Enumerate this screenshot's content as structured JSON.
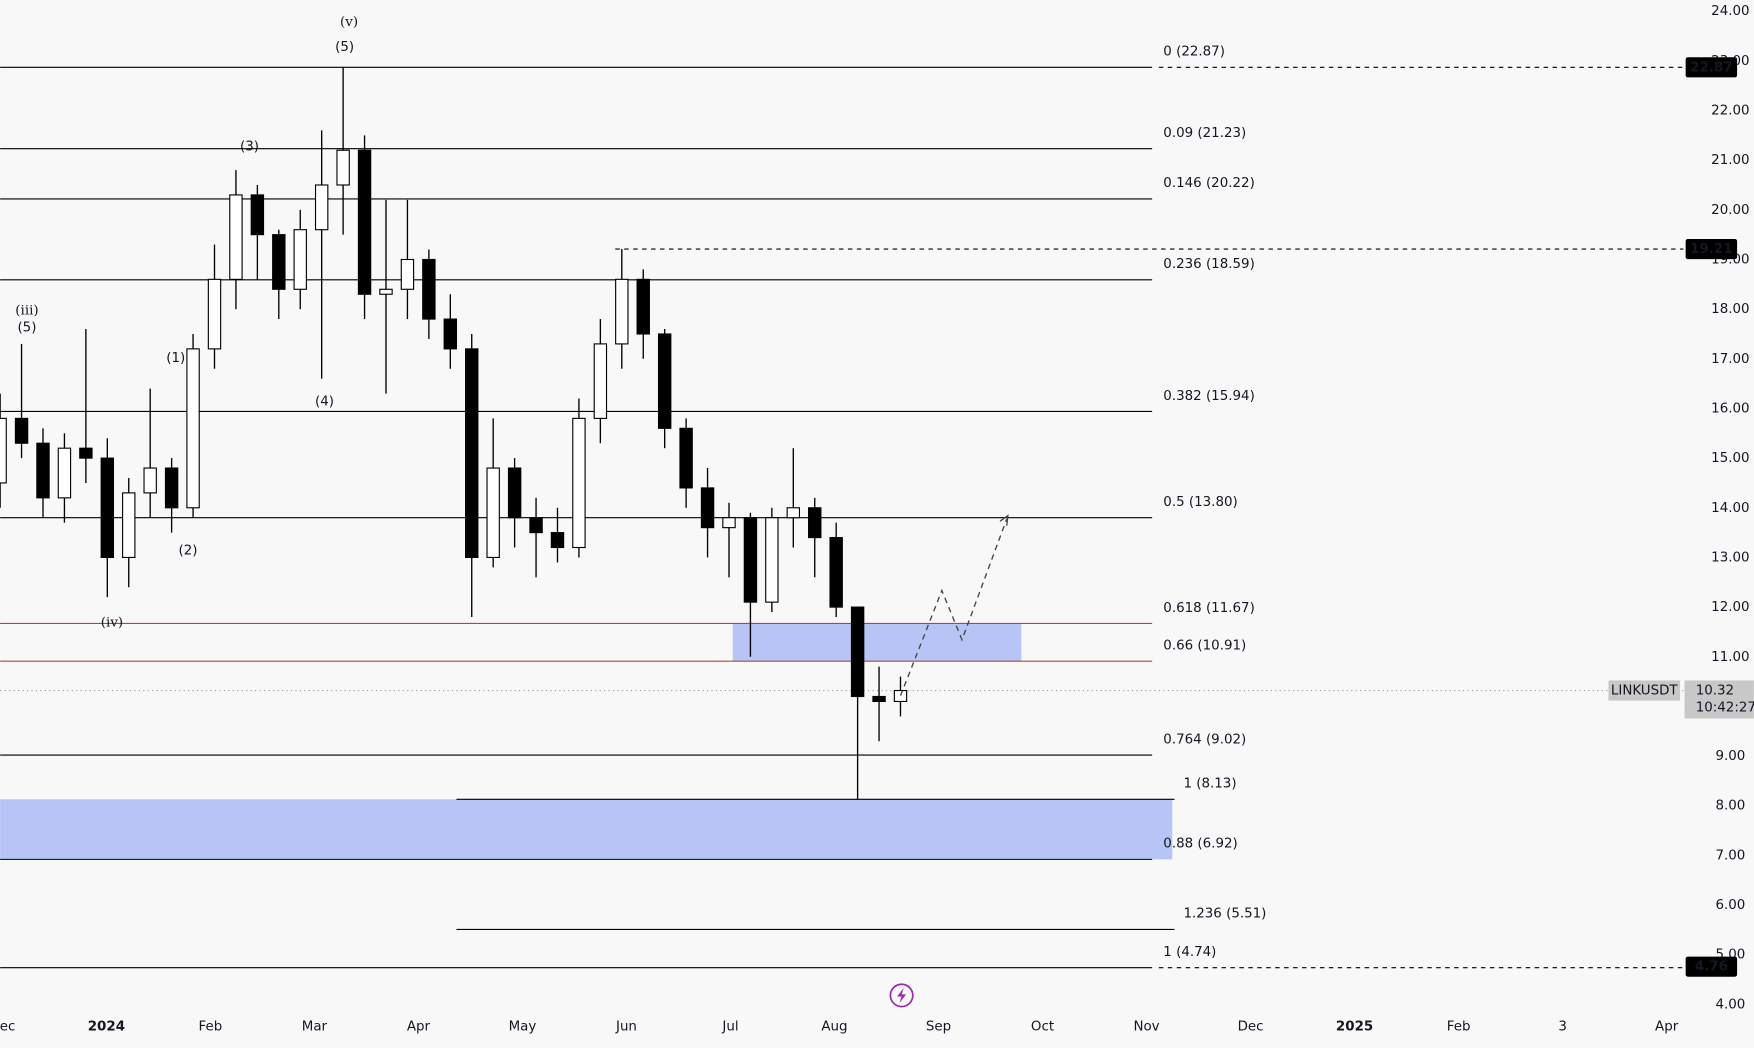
{
  "chart_data": {
    "type": "candlestick",
    "symbol": "LINKUSDT",
    "countdown": "10:42:27",
    "open": [
      14.5,
      15.8,
      15.3,
      14.2,
      15.2,
      15.0,
      13.0,
      14.3,
      14.8,
      14.0,
      17.2,
      18.6,
      20.3,
      19.5,
      18.4,
      19.6,
      20.5,
      21.2,
      18.3,
      18.4,
      19.0,
      17.8,
      17.2,
      13.0,
      14.8,
      13.8,
      13.5,
      13.2,
      15.8,
      17.3,
      18.6,
      17.5,
      15.6,
      14.4,
      13.6,
      13.8,
      12.1,
      13.8,
      14.0,
      13.4,
      12.0,
      10.2,
      10.1
    ],
    "high": [
      16.3,
      17.3,
      15.6,
      15.5,
      17.6,
      15.4,
      14.6,
      16.4,
      15.0,
      17.5,
      19.3,
      20.8,
      20.5,
      19.6,
      20.0,
      21.6,
      22.87,
      21.5,
      20.2,
      20.2,
      19.2,
      18.3,
      17.5,
      15.8,
      15.0,
      14.2,
      14.0,
      16.2,
      17.8,
      19.21,
      18.8,
      17.6,
      15.8,
      14.8,
      14.1,
      13.9,
      14.0,
      15.2,
      14.2,
      13.7,
      12.0,
      10.8,
      10.6
    ],
    "low": [
      14.0,
      15.0,
      13.8,
      13.7,
      14.5,
      12.2,
      12.4,
      13.8,
      13.5,
      13.8,
      16.8,
      18.0,
      18.6,
      17.8,
      18.0,
      16.6,
      19.5,
      17.8,
      16.3,
      17.8,
      17.4,
      16.8,
      11.8,
      12.8,
      13.2,
      12.6,
      12.9,
      13.0,
      15.3,
      16.8,
      17.0,
      15.2,
      14.0,
      13.0,
      12.6,
      11.0,
      11.9,
      13.2,
      12.6,
      11.8,
      8.13,
      9.3,
      9.8
    ],
    "close": [
      15.8,
      15.3,
      14.2,
      15.2,
      15.0,
      13.0,
      14.3,
      14.8,
      14.0,
      17.2,
      18.6,
      20.3,
      19.5,
      18.4,
      19.6,
      20.5,
      21.2,
      18.3,
      18.4,
      19.0,
      17.8,
      17.2,
      13.0,
      14.8,
      13.8,
      13.5,
      13.2,
      15.8,
      17.3,
      18.6,
      17.5,
      15.6,
      14.4,
      13.6,
      13.8,
      12.1,
      13.8,
      14.0,
      13.4,
      12.0,
      10.2,
      10.1,
      10.32
    ],
    "ylim": [
      4,
      24
    ],
    "yticks": [
      {
        "value": 4,
        "label": "4.00"
      },
      {
        "value": 5,
        "label": "5.00"
      },
      {
        "value": 6,
        "label": "6.00"
      },
      {
        "value": 7,
        "label": "7.00"
      },
      {
        "value": 8,
        "label": "8.00"
      },
      {
        "value": 9,
        "label": "9.00"
      },
      {
        "value": 10,
        "label": "10.00"
      },
      {
        "value": 11,
        "label": "11.00"
      },
      {
        "value": 12,
        "label": "12.00"
      },
      {
        "value": 13,
        "label": "13.00"
      },
      {
        "value": 14,
        "label": "14.00"
      },
      {
        "value": 15,
        "label": "15.00"
      },
      {
        "value": 16,
        "label": "16.00"
      },
      {
        "value": 17,
        "label": "17.00"
      },
      {
        "value": 18,
        "label": "18.00"
      },
      {
        "value": 19,
        "label": "19.00"
      },
      {
        "value": 20,
        "label": "20.00"
      },
      {
        "value": 21,
        "label": "21.00"
      },
      {
        "value": 22,
        "label": "22.00"
      },
      {
        "value": 23,
        "label": "23.00"
      },
      {
        "value": 24,
        "label": "24.00"
      }
    ],
    "x_labels": [
      "Dec",
      "2024",
      "Feb",
      "Mar",
      "Apr",
      "May",
      "Jun",
      "Jul",
      "Aug",
      "Sep",
      "Oct",
      "Nov",
      "Dec",
      "2025",
      "Feb",
      "3",
      "Apr"
    ],
    "levels": [
      {
        "name": "0 (22.87)",
        "value": 22.87,
        "color": "#000000"
      },
      {
        "name": "0.09 (21.23)",
        "value": 21.23,
        "color": "#000000"
      },
      {
        "name": "0.146 (20.22)",
        "value": 20.22,
        "color": "#000000"
      },
      {
        "name": "0.236 (18.59)",
        "value": 18.59,
        "color": "#000000"
      },
      {
        "name": "0.382 (15.94)",
        "value": 15.94,
        "color": "#000000"
      },
      {
        "name": "0.5 (13.80)",
        "value": 13.8,
        "color": "#000000"
      },
      {
        "name": "0.618 (11.67)",
        "value": 11.67,
        "color": "#b5443b"
      },
      {
        "name": "0.66 (10.91)",
        "value": 10.91,
        "color": "#b5443b"
      },
      {
        "name": "0.764 (9.02)",
        "value": 9.02,
        "color": "#000000"
      },
      {
        "name": "1 (8.13)",
        "value": 8.13,
        "color": "#000000"
      },
      {
        "name": "0.88 (6.92)",
        "value": 6.92,
        "color": "#000000"
      },
      {
        "name": "1.236 (5.51)",
        "value": 5.51,
        "color": "#000000"
      },
      {
        "name": "1 (4.74)",
        "value": 4.74,
        "color": "#000000"
      }
    ],
    "zones": [
      {
        "low": 10.91,
        "high": 11.67,
        "color": "#b3c2f5"
      },
      {
        "low": 6.92,
        "high": 8.13,
        "color": "#b3c2f5"
      }
    ],
    "price_tags": [
      22.87,
      19.21,
      4.76
    ],
    "last_price": 10.32,
    "wave_labels": [
      "(v)",
      "(5)",
      "(3)",
      "(1)",
      "(4)",
      "(2)",
      "(iii)",
      "(5)",
      "(iv)"
    ]
  }
}
